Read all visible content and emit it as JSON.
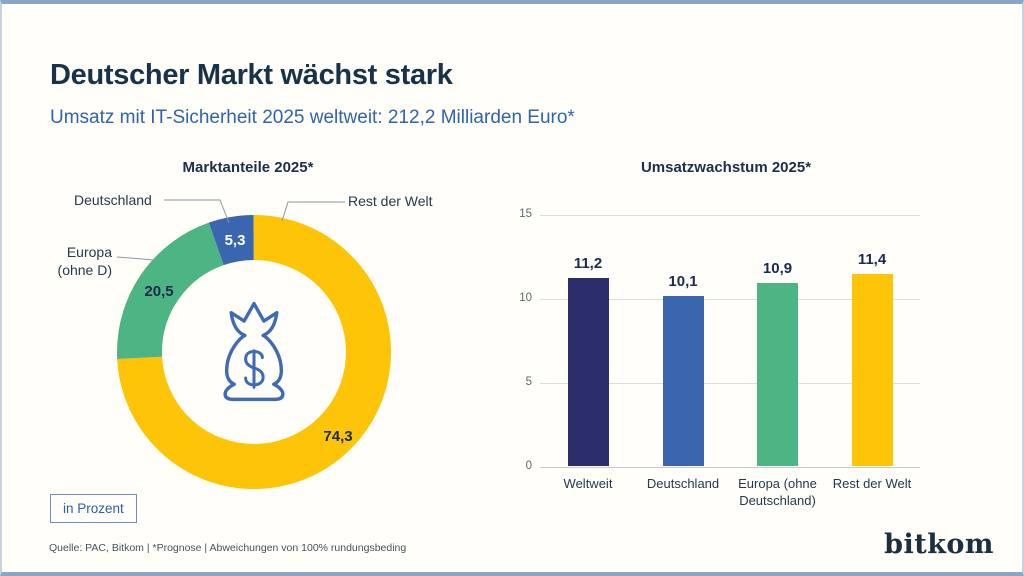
{
  "page": {
    "title": "Deutscher Markt wächst stark",
    "subtitle": "Umsatz mit IT-Sicherheit 2025 weltweit: 212,2 Milliarden Euro*",
    "unit_badge": "in Prozent",
    "footnote": "Quelle: PAC, Bitkom | *Prognose | Abweichungen von 100% rundungsbeding",
    "logo": "bitkom"
  },
  "colors": {
    "accent_blue": "#2e64ae",
    "dark_text": "#16334a",
    "yellow": "#fdc408",
    "green": "#4db583",
    "blue": "#3a66b0",
    "navy": "#2b2e6b",
    "icon_stroke": "#3f6bb4",
    "border": "#8ba6c6"
  },
  "chart_data": [
    {
      "type": "pie",
      "donut": true,
      "title": "Marktanteile 2025*",
      "unit": "Prozent",
      "center_icon": "money-bag-icon",
      "legend_position": "callouts",
      "segments": [
        {
          "label": "Rest der Welt",
          "callout": "Rest der Welt",
          "value": 74.3,
          "display": "74,3",
          "color": "#fdc408"
        },
        {
          "label": "Europa (ohne D)",
          "callout": "Europa\n(ohne D)",
          "value": 20.5,
          "display": "20,5",
          "color": "#4db583"
        },
        {
          "label": "Deutschland",
          "callout": "Deutschland",
          "value": 5.3,
          "display": "5,3",
          "color": "#3a66b0"
        }
      ]
    },
    {
      "type": "bar",
      "title": "Umsatzwachstum 2025*",
      "categories": [
        "Weltweit",
        "Deutschland",
        "Europa (ohne Deutschland)",
        "Rest der Welt"
      ],
      "values": [
        11.2,
        10.1,
        10.9,
        11.4
      ],
      "display_values": [
        "11,2",
        "10,1",
        "10,9",
        "11,4"
      ],
      "bar_colors": [
        "#2b2e6b",
        "#3a66b0",
        "#4db583",
        "#fdc408"
      ],
      "xlabel": "",
      "ylabel": "",
      "ylim": [
        0,
        15
      ],
      "yticks": [
        0,
        5,
        10,
        15
      ],
      "grid": true
    }
  ]
}
